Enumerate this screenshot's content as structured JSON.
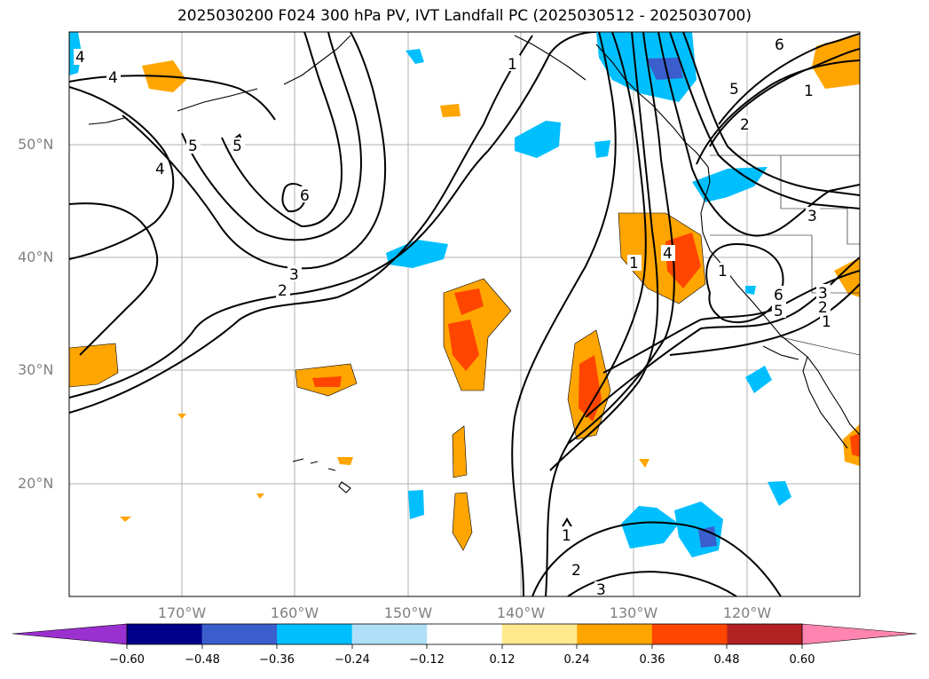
{
  "title": "2025030200 F024 300 hPa PV, IVT Landfall PC (2025030512 - 2025030700)",
  "lat_labels": [
    "50°N",
    "40°N",
    "30°N",
    "20°N"
  ],
  "lon_labels": [
    "170°W",
    "160°W",
    "150°W",
    "140°W",
    "130°W",
    "120°W"
  ],
  "contour_labels": [
    "1",
    "2",
    "3",
    "4",
    "5",
    "6"
  ],
  "colorbar": {
    "ticks": [
      "−0.60",
      "−0.48",
      "−0.36",
      "−0.24",
      "−0.12",
      "0.12",
      "0.24",
      "0.36",
      "0.48",
      "0.60"
    ],
    "colors": [
      "#9b30d0",
      "#00008b",
      "#3a5fcd",
      "#00bfff",
      "#b0e0f8",
      "#ffffff",
      "#ffe98c",
      "#ffa500",
      "#ff4500",
      "#b22222",
      "#ff85b0"
    ]
  }
}
